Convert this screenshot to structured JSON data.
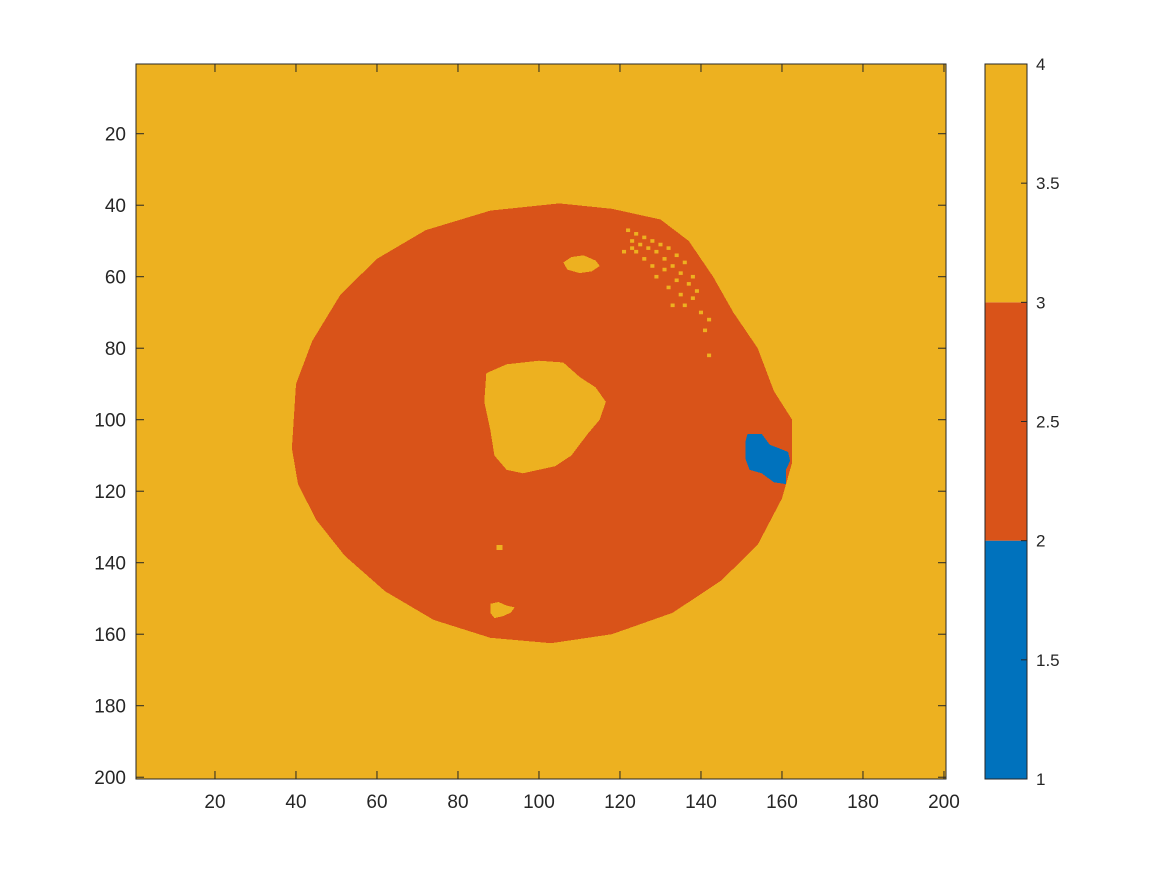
{
  "chart_data": {
    "type": "heatmap",
    "title": "",
    "xlabel": "",
    "ylabel": "",
    "xlim": [
      0.5,
      200.5
    ],
    "ylim": [
      0.5,
      200.5
    ],
    "y_reversed": true,
    "xticks": [
      20,
      40,
      60,
      80,
      100,
      120,
      140,
      160,
      180,
      200
    ],
    "yticks": [
      20,
      40,
      60,
      80,
      100,
      120,
      140,
      160,
      180,
      200
    ],
    "xtick_labels": [
      "20",
      "40",
      "60",
      "80",
      "100",
      "120",
      "140",
      "160",
      "180",
      "200"
    ],
    "ytick_labels": [
      "20",
      "40",
      "60",
      "80",
      "100",
      "120",
      "140",
      "160",
      "180",
      "200"
    ],
    "grid": false,
    "colorbar": {
      "location": "right",
      "range": [
        1,
        4
      ],
      "ticks": [
        1,
        1.5,
        2,
        2.5,
        3,
        3.5,
        4
      ],
      "tick_labels": [
        "1",
        "1.5",
        "2",
        "2.5",
        "3",
        "3.5",
        "4"
      ],
      "segments": [
        {
          "from": 1,
          "to": 2,
          "color": "#0072BD"
        },
        {
          "from": 2,
          "to": 3,
          "color": "#D95319"
        },
        {
          "from": 3,
          "to": 4,
          "color": "#EDB120"
        }
      ]
    },
    "background_value": 4,
    "regions": [
      {
        "name": "disk",
        "value": 3,
        "color": "#D95319",
        "polygon": [
          [
            105,
            39.5
          ],
          [
            118,
            41
          ],
          [
            130,
            44
          ],
          [
            137,
            50
          ],
          [
            143,
            60
          ],
          [
            148,
            70
          ],
          [
            154,
            80
          ],
          [
            158,
            92
          ],
          [
            162.5,
            100
          ],
          [
            162.5,
            112
          ],
          [
            160,
            122
          ],
          [
            154,
            135
          ],
          [
            145,
            145
          ],
          [
            133,
            154
          ],
          [
            118,
            160
          ],
          [
            103,
            162.5
          ],
          [
            88,
            161
          ],
          [
            74,
            156
          ],
          [
            62,
            148
          ],
          [
            52,
            138
          ],
          [
            45,
            128
          ],
          [
            40.5,
            118
          ],
          [
            39,
            108
          ],
          [
            40,
            90
          ],
          [
            44,
            78
          ],
          [
            51,
            65
          ],
          [
            60,
            55
          ],
          [
            72,
            47
          ],
          [
            88,
            41.5
          ]
        ]
      },
      {
        "name": "center-hole",
        "value": 4,
        "color": "#EDB120",
        "polygon": [
          [
            87,
            87
          ],
          [
            92,
            84.5
          ],
          [
            100,
            83.5
          ],
          [
            106,
            84
          ],
          [
            110,
            88
          ],
          [
            114,
            91
          ],
          [
            116.5,
            95
          ],
          [
            115,
            100
          ],
          [
            112,
            104
          ],
          [
            108,
            110
          ],
          [
            104,
            113
          ],
          [
            96,
            115
          ],
          [
            92,
            114
          ],
          [
            89,
            110
          ],
          [
            88,
            103
          ],
          [
            86.5,
            95
          ]
        ]
      },
      {
        "name": "blue-patch",
        "value": 1,
        "color": "#0072BD",
        "polygon": [
          [
            151.5,
            104
          ],
          [
            155,
            104
          ],
          [
            157,
            107
          ],
          [
            161.5,
            109
          ],
          [
            162,
            111.5
          ],
          [
            161,
            114
          ],
          [
            161,
            118
          ],
          [
            158,
            117.5
          ],
          [
            155,
            115
          ],
          [
            152,
            114
          ],
          [
            151,
            111
          ],
          [
            151,
            106
          ]
        ]
      },
      {
        "name": "small-hole-1",
        "value": 4,
        "color": "#EDB120",
        "polygon": [
          [
            106,
            56
          ],
          [
            108,
            54.5
          ],
          [
            111,
            54
          ],
          [
            114,
            55.5
          ],
          [
            115,
            57
          ],
          [
            113,
            58.5
          ],
          [
            110,
            59
          ],
          [
            107,
            58
          ]
        ]
      },
      {
        "name": "small-hole-2",
        "value": 4,
        "color": "#EDB120",
        "polygon": [
          [
            88,
            151.5
          ],
          [
            90,
            151
          ],
          [
            92,
            152
          ],
          [
            94,
            152.5
          ],
          [
            93,
            154
          ],
          [
            91,
            155
          ],
          [
            89,
            155.5
          ],
          [
            88,
            154
          ]
        ]
      },
      {
        "name": "speck-1",
        "value": 4,
        "color": "#EDB120",
        "polygon": [
          [
            89.5,
            135
          ],
          [
            91,
            135
          ],
          [
            91,
            136.5
          ],
          [
            89.5,
            136.5
          ]
        ]
      }
    ],
    "speckles": {
      "value": 4,
      "color": "#EDB120",
      "cells": [
        [
          122,
          47
        ],
        [
          124,
          48
        ],
        [
          126,
          49
        ],
        [
          123,
          50
        ],
        [
          128,
          50
        ],
        [
          125,
          51
        ],
        [
          130,
          51
        ],
        [
          127,
          52
        ],
        [
          132,
          52
        ],
        [
          121,
          53
        ],
        [
          124,
          53
        ],
        [
          129,
          53
        ],
        [
          134,
          54
        ],
        [
          126,
          55
        ],
        [
          131,
          55
        ],
        [
          136,
          56
        ],
        [
          128,
          57
        ],
        [
          133,
          57
        ],
        [
          123,
          52
        ],
        [
          131,
          58
        ],
        [
          135,
          59
        ],
        [
          138,
          60
        ],
        [
          129,
          60
        ],
        [
          134,
          61
        ],
        [
          137,
          62
        ],
        [
          132,
          63
        ],
        [
          139,
          64
        ],
        [
          135,
          65
        ],
        [
          138,
          66
        ],
        [
          136,
          68
        ],
        [
          133,
          68
        ],
        [
          140,
          70
        ],
        [
          142,
          72
        ],
        [
          141,
          75
        ],
        [
          142,
          82
        ]
      ]
    }
  }
}
